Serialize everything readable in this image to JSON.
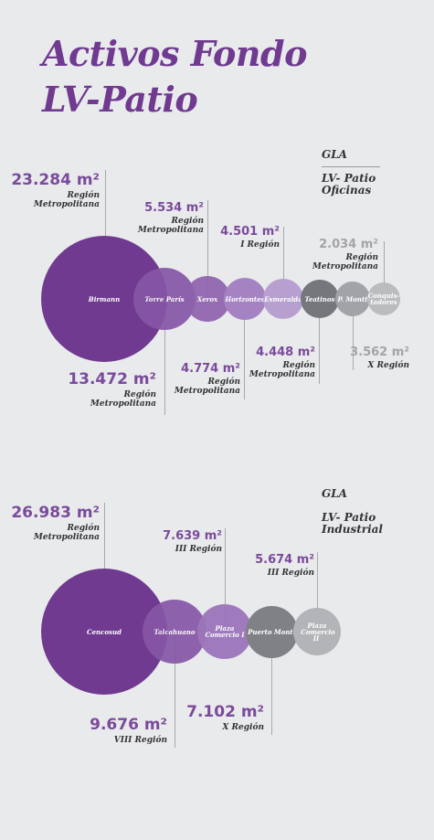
{
  "title": {
    "line1": "Activos Fondo",
    "line2": "LV-Patio"
  },
  "oficinas": {
    "gla_label": "GLA",
    "fund_line1": "LV- Patio",
    "fund_line2": "Oficinas",
    "assets": [
      {
        "name": "Birmann",
        "area": "23.284 m²",
        "region_l1": "Región",
        "region_l2": "Metropolitana",
        "color": "#6f3a8f"
      },
      {
        "name": "Torre París",
        "area": "13.472 m²",
        "region_l1": "Región",
        "region_l2": "Metropolitana",
        "color": "#8656a6"
      },
      {
        "name": "Xerox",
        "area": "5.534 m²",
        "region_l1": "Región",
        "region_l2": "Metropolitana",
        "color": "#8f62ae"
      },
      {
        "name": "Horizontes",
        "area": "4.774 m²",
        "region_l1": "Región",
        "region_l2": "Metropolitana",
        "color": "#a583c2"
      },
      {
        "name": "Esmeralda",
        "area": "4.501 m²",
        "region_l1": "I Región",
        "region_l2": "",
        "color": "#b7a0d0"
      },
      {
        "name": "Teatinos",
        "area": "4.448 m²",
        "region_l1": "Región",
        "region_l2": "Metropolitana",
        "color": "#76777c"
      },
      {
        "name": "P. Montt",
        "area": "3.562 m²",
        "region_l1": "X Región",
        "region_l2": "",
        "color": "#a2a3a8"
      },
      {
        "name_l1": "Conquis-",
        "name_l2": "tadores",
        "area": "2.034 m²",
        "region_l1": "Región",
        "region_l2": "Metropolitana",
        "color": "#bbbcc0"
      }
    ]
  },
  "industrial": {
    "gla_label": "GLA",
    "fund_line1": "LV- Patio",
    "fund_line2": "Industrial",
    "assets": [
      {
        "name": "Cencosud",
        "area": "26.983 m²",
        "region_l1": "Región",
        "region_l2": "Metropolitana",
        "color": "#6f3a8f"
      },
      {
        "name": "Talcahuano",
        "area": "9.676 m²",
        "region_l1": "VIII Región",
        "region_l2": "",
        "color": "#8656a6"
      },
      {
        "name_l1": "Plaza",
        "name_l2": "Comercio I",
        "area": "7.639 m²",
        "region_l1": "III Región",
        "region_l2": "",
        "color": "#9c76bb"
      },
      {
        "name": "Puerto Montt",
        "area": "7.102 m²",
        "region_l1": "X Región",
        "region_l2": "",
        "color": "#808186"
      },
      {
        "name_l1": "Plaza",
        "name_l2": "Comercio II",
        "area": "5.674 m²",
        "region_l1": "III Región",
        "region_l2": "",
        "color": "#b3b4b8"
      }
    ]
  }
}
